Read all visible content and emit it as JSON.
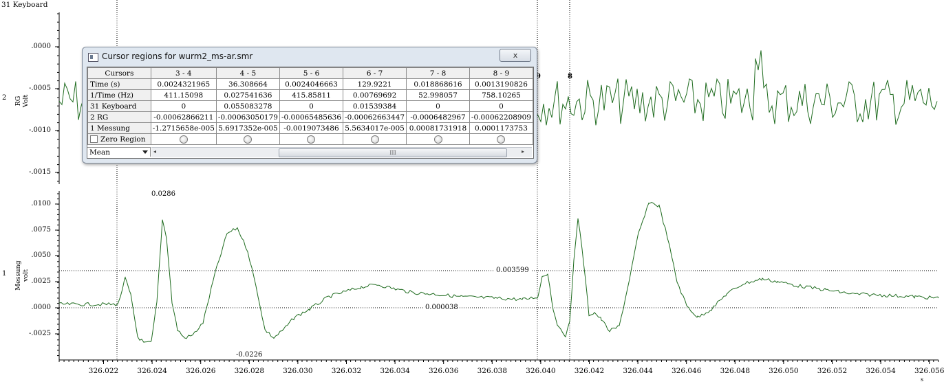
{
  "top_channel_label": "31 Keyboard",
  "channels": {
    "rg": {
      "number": "2",
      "title": "RG",
      "unit": "Volt",
      "ticks": [
        ".0000",
        "-.0005",
        "-.0010",
        "-.0015"
      ]
    },
    "messung": {
      "number": "1",
      "title": "Messung",
      "unit": "volt",
      "ticks": [
        ".0100",
        ".0075",
        ".0050",
        ".0025",
        ".0000",
        "-.0025"
      ]
    }
  },
  "x_axis": {
    "ticks": [
      "326.022",
      "326.024",
      "326.026",
      "326.028",
      "326.030",
      "326.032",
      "326.034",
      "326.036",
      "326.038",
      "326.040",
      "326.042",
      "326.044",
      "326.046",
      "326.048",
      "326.050",
      "326.052",
      "326.054",
      "326.056"
    ],
    "unit": "s"
  },
  "cursors": {
    "label_9": "9",
    "label_8": "8"
  },
  "annotations": {
    "peak": "0.0286",
    "trough": "-0.0226",
    "upper_level": "0.003599",
    "baseline_level": "0.000038"
  },
  "dialog": {
    "title": "Cursor regions for wurm2_ms-ar.smr",
    "close_label": "x",
    "columns": [
      "Cursors",
      "3 - 4",
      "4 - 5",
      "5 - 6",
      "6 - 7",
      "7 - 8",
      "8 - 9"
    ],
    "rows": [
      {
        "label": "Time (s)",
        "values": [
          "0.0024321965",
          "36.308664",
          "0.0024046663",
          "129.9221",
          "0.018868616",
          "0.0013190826"
        ]
      },
      {
        "label": "1/Time (Hz)",
        "values": [
          "411.15098",
          "0.027541636",
          "415.85811",
          "0.00769692",
          "52.998057",
          "758.10265"
        ]
      },
      {
        "label": "31 Keyboard",
        "values": [
          "0",
          "0.055083278",
          "0",
          "0.01539384",
          "0",
          "0"
        ]
      },
      {
        "label": "2 RG",
        "values": [
          "-0.00062866211",
          "-0.00063050179",
          "-0.00065485636",
          "-0.00062663447",
          "-0.0006482967",
          "-0.00062208909"
        ]
      },
      {
        "label": "1 Messung",
        "values": [
          "-1.2715658e-005",
          "5.6917352e-005",
          "-0.0019073486",
          "5.5634017e-005",
          "0.00081731918",
          "0.0001173753"
        ]
      }
    ],
    "zero_region_label": "Zero Region",
    "mode_select": "Mean",
    "scroll_thumb_mark": "III",
    "scroll_left": "◂",
    "scroll_right": "▸"
  },
  "colors": {
    "trace": "#1e6b1e",
    "dialog_bg": "#dfe7f0"
  }
}
